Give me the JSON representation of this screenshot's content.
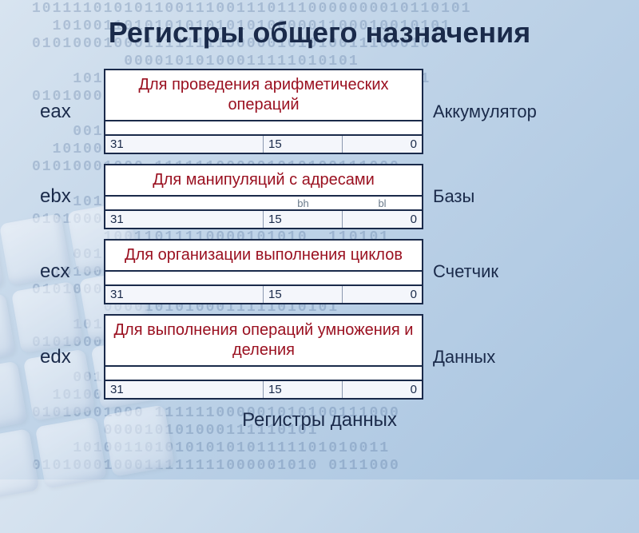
{
  "title": "Регистры общего назначения",
  "footer": "Регистры данных",
  "bit_labels": {
    "hi": "31",
    "mid": "15",
    "lo": "0"
  },
  "registers": [
    {
      "name": "eax",
      "purpose": "Аккумулятор",
      "description": "Для проведения арифметических операций",
      "sub_hi": "",
      "sub_lo": ""
    },
    {
      "name": "ebx",
      "purpose": "Базы",
      "description": "Для манипуляций с адресами",
      "sub_hi": "bh",
      "sub_lo": "bl"
    },
    {
      "name": "ecx",
      "purpose": "Счетчик",
      "description": "Для организации выполнения циклов",
      "sub_hi": "",
      "sub_lo": ""
    },
    {
      "name": "edx",
      "purpose": "Данных",
      "description": "Для выполнения операций умножения и деления",
      "sub_hi": "",
      "sub_lo": ""
    }
  ],
  "colors": {
    "title": "#1a2a4a",
    "desc": "#9a1020",
    "border": "#1a2a4a",
    "box_bg": "#ffffff"
  },
  "binary_bg": "1011110101011001110011101110000000010110101\n  101001101010101010101000001100010010101\n010100010001111111100000101010011100010\n         00001010100011111010101\n    101001101010101010 1111010100110101\n0101000100011111111000001010 011100010\n       10011011110000101010  1101010\n    001000100111000101010  0101010101\n  10100110101010101010100000110001001\n01010001000 111111000001010100111000\n       000010101000111110101\n    1010011010101010101111101010011\n0101000100011111111000001010 0111000\n       10011011110000101010  110101\n    00100010011100010101   01010101\n  1010011010101010101010000011000100\n0101000100011111111000001010100111000\n       00001010100011111010101\n    101001101010101010 111110101001101\n0101000100011111111000001010 011100010\n       10011011110000101010  1101010\n    001000100111000101010  0101010101\n  10100110101010101010100000110001001\n01010001000 111111000001010100111000\n       000010101000111110101\n    1010011010101010101111101010011\n0101000100011111111000001010 0111000"
}
